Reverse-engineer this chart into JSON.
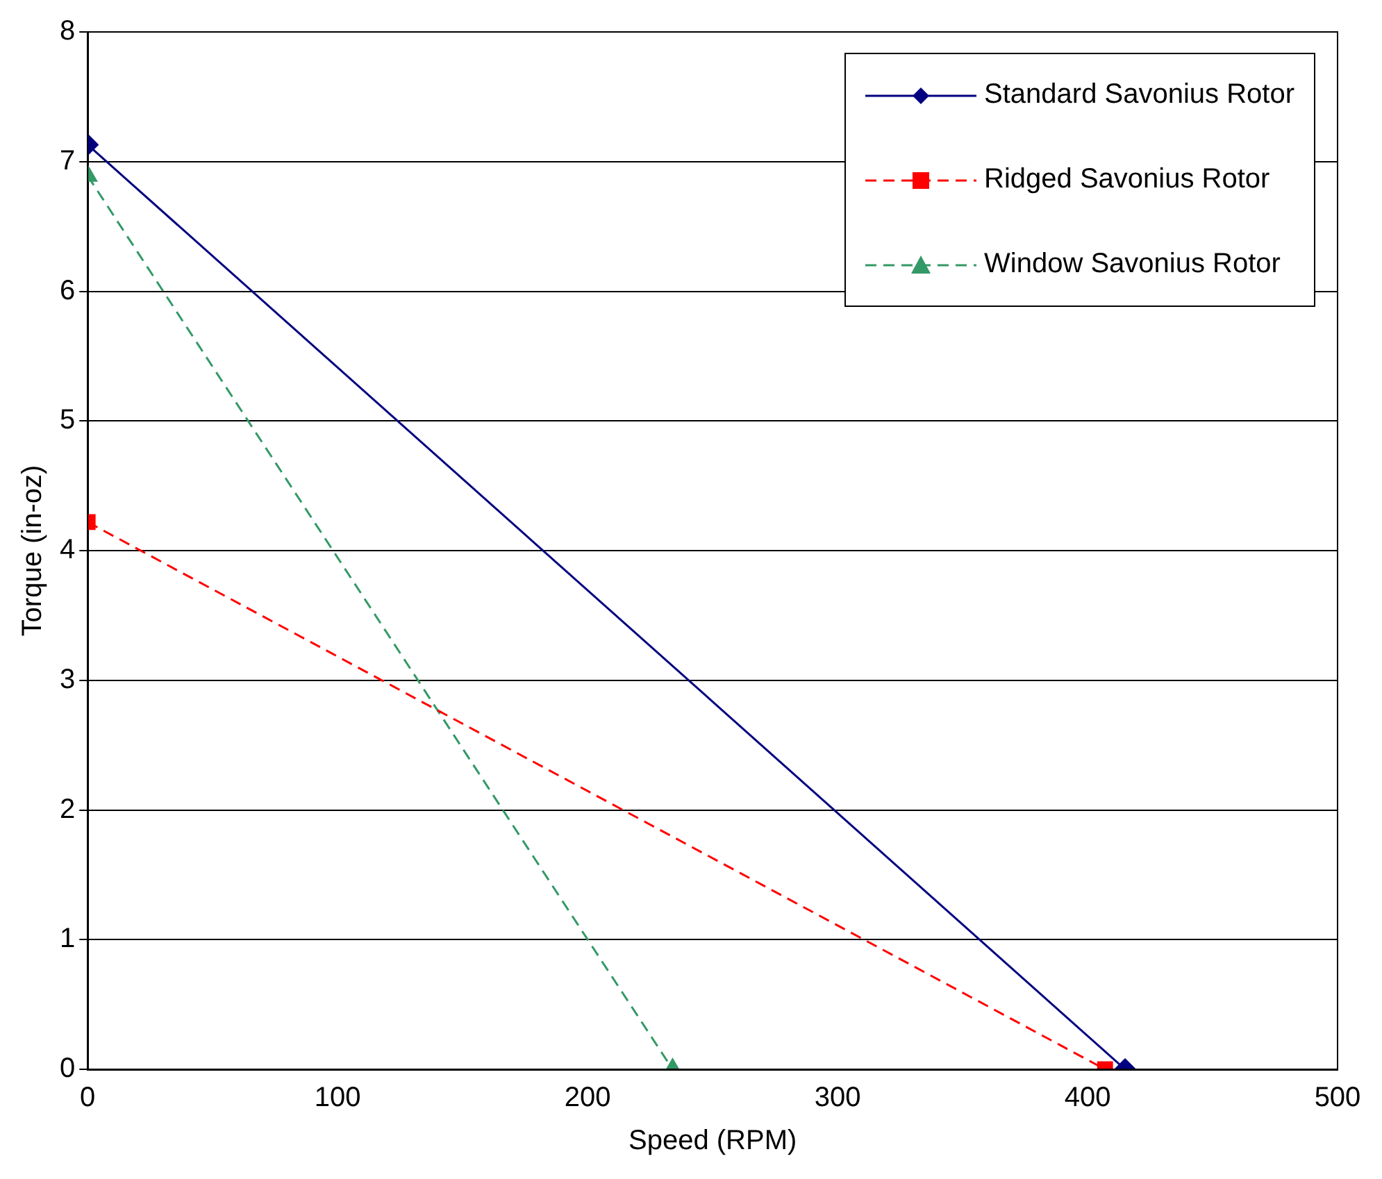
{
  "chart_data": {
    "type": "line",
    "xlabel": "Speed (RPM)",
    "ylabel": "Torque (in-oz)",
    "xlim": [
      0,
      500
    ],
    "xticks": [
      0,
      100,
      200,
      300,
      400,
      500
    ],
    "ylim": [
      0,
      8
    ],
    "yticks": [
      0,
      1,
      2,
      3,
      4,
      5,
      6,
      7,
      8
    ],
    "grid": "y",
    "legend": "top right",
    "series": [
      {
        "name": "Standard Savonius Rotor",
        "color": "#000080",
        "x": [
          0,
          415
        ],
        "values": [
          7.13,
          0
        ],
        "marker": "diamond",
        "line_style": "solid"
      },
      {
        "name": "Ridged Savonius Rotor",
        "color": "#ff0000",
        "x": [
          0,
          407
        ],
        "values": [
          4.22,
          0
        ],
        "marker": "square",
        "line_style": "dashed"
      },
      {
        "name": "Window Savonius Rotor",
        "color": "#339966",
        "x": [
          0,
          234
        ],
        "values": [
          6.89,
          0
        ],
        "marker": "triangle",
        "line_style": "dashed"
      }
    ]
  }
}
